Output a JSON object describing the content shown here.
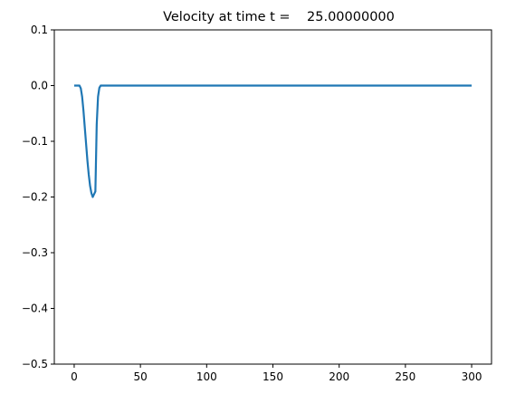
{
  "chart_data": {
    "type": "line",
    "title": "Velocity at time t =    25.00000000",
    "xlabel": "",
    "ylabel": "",
    "xlim": [
      -15,
      315
    ],
    "ylim": [
      -0.5,
      0.1
    ],
    "x_ticks": [
      0,
      50,
      100,
      150,
      200,
      250,
      300
    ],
    "x_tick_labels": [
      "0",
      "50",
      "100",
      "150",
      "200",
      "250",
      "300"
    ],
    "y_ticks": [
      0.1,
      0.0,
      -0.1,
      -0.2,
      -0.3,
      -0.4,
      -0.5
    ],
    "y_tick_labels": [
      "0.1",
      "0.0",
      "−0.1",
      "−0.2",
      "−0.3",
      "−0.4",
      "−0.5"
    ],
    "grid": false,
    "legend": "none",
    "series": [
      {
        "color": "#1f77b4",
        "x": [
          0,
          1,
          2,
          3,
          4,
          5,
          6,
          7,
          8,
          9,
          10,
          11,
          12,
          13,
          14,
          15,
          16,
          17,
          18,
          19,
          20,
          21,
          22,
          23,
          25,
          30,
          50,
          100,
          150,
          200,
          250,
          300
        ],
        "y": [
          0.0,
          0.0,
          0.0,
          0.0,
          0.0,
          -0.005,
          -0.02,
          -0.045,
          -0.075,
          -0.105,
          -0.135,
          -0.16,
          -0.18,
          -0.193,
          -0.2,
          -0.195,
          -0.19,
          -0.07,
          -0.02,
          -0.004,
          0.0,
          0.0,
          0.0,
          0.0,
          0.0,
          0.0,
          0.0,
          0.0,
          0.0,
          0.0,
          0.0,
          0.0
        ]
      }
    ]
  }
}
